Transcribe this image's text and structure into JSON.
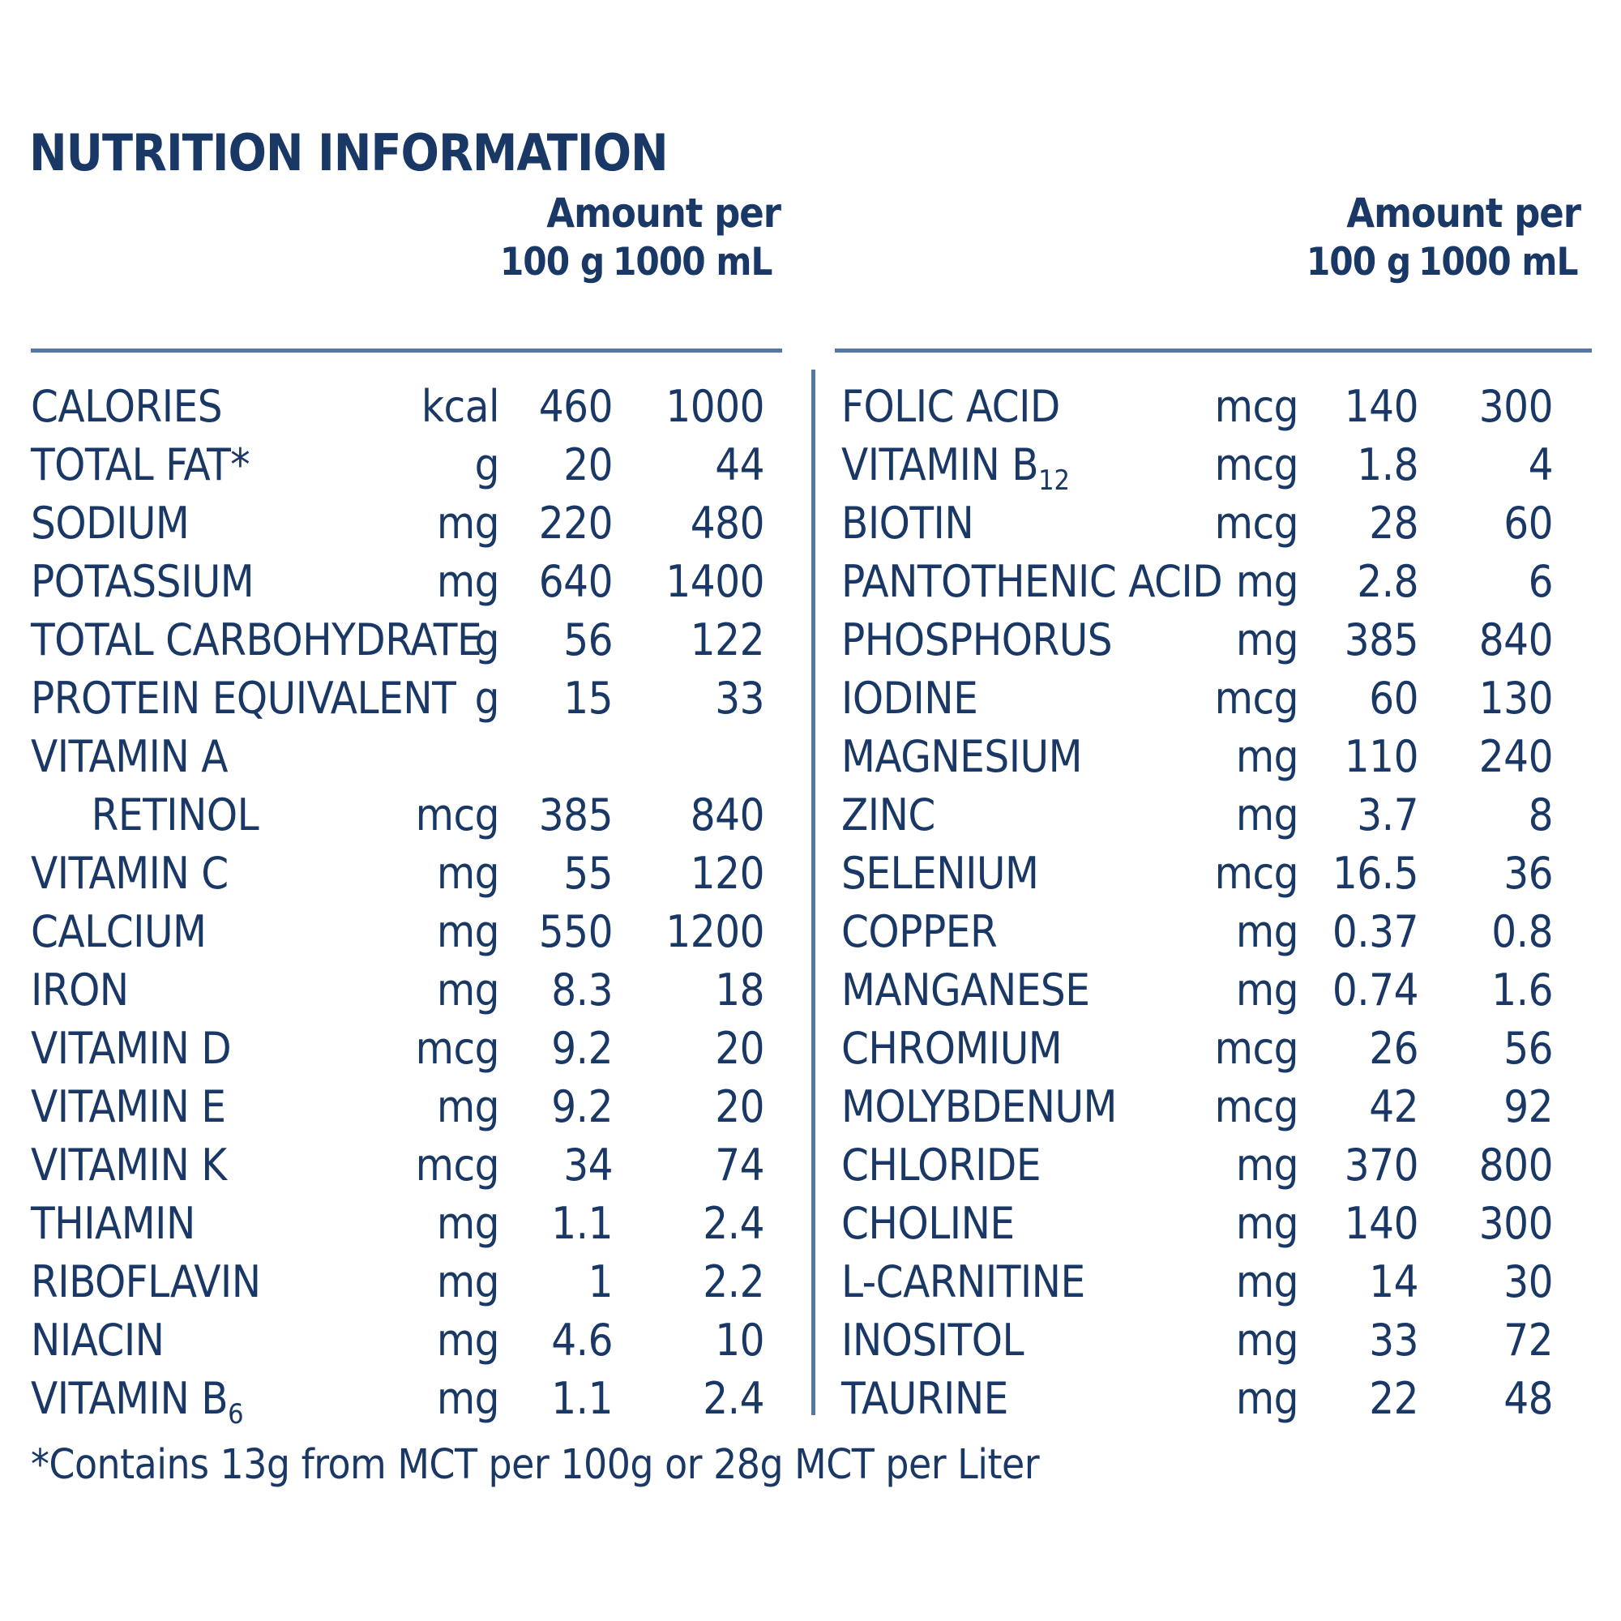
{
  "title": "NUTRITION INFORMATION",
  "colors": {
    "text": "#1a3866",
    "rule": "#5677a6",
    "background": "#ffffff"
  },
  "header": {
    "amount_label": "Amount per",
    "col_100g": "100 g",
    "col_1000ml": "1000 mL"
  },
  "tables": {
    "left": {
      "rows": [
        {
          "label": "CALORIES",
          "unit": "kcal",
          "per_100g": "460",
          "per_1000ml": "1000"
        },
        {
          "label": "TOTAL FAT*",
          "unit": "g",
          "per_100g": "20",
          "per_1000ml": "44"
        },
        {
          "label": "SODIUM",
          "unit": "mg",
          "per_100g": "220",
          "per_1000ml": "480"
        },
        {
          "label": "POTASSIUM",
          "unit": "mg",
          "per_100g": "640",
          "per_1000ml": "1400"
        },
        {
          "label": "TOTAL CARBOHYDRATE",
          "unit": "g",
          "per_100g": "56",
          "per_1000ml": "122"
        },
        {
          "label": "PROTEIN EQUIVALENT",
          "unit": "g",
          "per_100g": "15",
          "per_1000ml": "33"
        },
        {
          "label": "VITAMIN A",
          "unit": "",
          "per_100g": "",
          "per_1000ml": ""
        },
        {
          "label": "     RETINOL",
          "unit": "mcg",
          "per_100g": "385",
          "per_1000ml": "840"
        },
        {
          "label": "VITAMIN C",
          "unit": "mg",
          "per_100g": "55",
          "per_1000ml": "120"
        },
        {
          "label": "CALCIUM",
          "unit": "mg",
          "per_100g": "550",
          "per_1000ml": "1200"
        },
        {
          "label": "IRON",
          "unit": "mg",
          "per_100g": "8.3",
          "per_1000ml": "18"
        },
        {
          "label": "VITAMIN D",
          "unit": "mcg",
          "per_100g": "9.2",
          "per_1000ml": "20"
        },
        {
          "label": "VITAMIN E",
          "unit": "mg",
          "per_100g": "9.2",
          "per_1000ml": "20"
        },
        {
          "label": "VITAMIN K",
          "unit": "mcg",
          "per_100g": "34",
          "per_1000ml": "74"
        },
        {
          "label": "THIAMIN",
          "unit": "mg",
          "per_100g": "1.1",
          "per_1000ml": "2.4"
        },
        {
          "label": "RIBOFLAVIN",
          "unit": "mg",
          "per_100g": "1",
          "per_1000ml": "2.2"
        },
        {
          "label": "NIACIN",
          "unit": "mg",
          "per_100g": "4.6",
          "per_1000ml": "10"
        },
        {
          "label": "VITAMIN B",
          "label_sub": "6",
          "unit": "mg",
          "per_100g": "1.1",
          "per_1000ml": "2.4"
        }
      ]
    },
    "right": {
      "rows": [
        {
          "label": "FOLIC ACID",
          "unit": "mcg",
          "per_100g": "140",
          "per_1000ml": "300"
        },
        {
          "label": "VITAMIN B",
          "label_sub": "12",
          "unit": "mcg",
          "per_100g": "1.8",
          "per_1000ml": "4"
        },
        {
          "label": "BIOTIN",
          "unit": "mcg",
          "per_100g": "28",
          "per_1000ml": "60"
        },
        {
          "label": "PANTOTHENIC ACID",
          "unit": "mg",
          "per_100g": "2.8",
          "per_1000ml": "6"
        },
        {
          "label": "PHOSPHORUS",
          "unit": "mg",
          "per_100g": "385",
          "per_1000ml": "840"
        },
        {
          "label": "IODINE",
          "unit": "mcg",
          "per_100g": "60",
          "per_1000ml": "130"
        },
        {
          "label": "MAGNESIUM",
          "unit": "mg",
          "per_100g": "110",
          "per_1000ml": "240"
        },
        {
          "label": "ZINC",
          "unit": "mg",
          "per_100g": "3.7",
          "per_1000ml": "8"
        },
        {
          "label": "SELENIUM",
          "unit": "mcg",
          "per_100g": "16.5",
          "per_1000ml": "36"
        },
        {
          "label": "COPPER",
          "unit": "mg",
          "per_100g": "0.37",
          "per_1000ml": "0.8"
        },
        {
          "label": "MANGANESE",
          "unit": "mg",
          "per_100g": "0.74",
          "per_1000ml": "1.6"
        },
        {
          "label": "CHROMIUM",
          "unit": "mcg",
          "per_100g": "26",
          "per_1000ml": "56"
        },
        {
          "label": "MOLYBDENUM",
          "unit": "mcg",
          "per_100g": "42",
          "per_1000ml": "92"
        },
        {
          "label": "CHLORIDE",
          "unit": "mg",
          "per_100g": "370",
          "per_1000ml": "800"
        },
        {
          "label": "CHOLINE",
          "unit": "mg",
          "per_100g": "140",
          "per_1000ml": "300"
        },
        {
          "label": "L-CARNITINE",
          "unit": "mg",
          "per_100g": "14",
          "per_1000ml": "30"
        },
        {
          "label": "INOSITOL",
          "unit": "mg",
          "per_100g": "33",
          "per_1000ml": "72"
        },
        {
          "label": "TAURINE",
          "unit": "mg",
          "per_100g": "22",
          "per_1000ml": "48"
        }
      ]
    }
  },
  "footnote": "*Contains 13g from MCT per 100g or 28g MCT per Liter"
}
